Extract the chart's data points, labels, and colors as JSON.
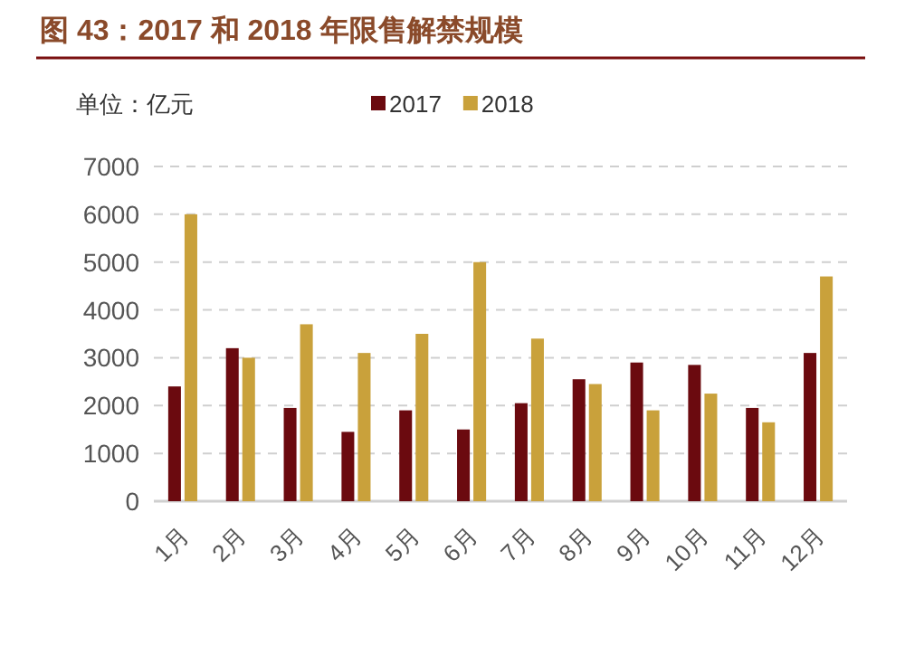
{
  "chart_data": {
    "type": "bar",
    "title": "图 43：2017 和 2018 年限售解禁规模",
    "ylabel": "单位：亿元",
    "categories": [
      "1月",
      "2月",
      "3月",
      "4月",
      "5月",
      "6月",
      "7月",
      "8月",
      "9月",
      "10月",
      "11月",
      "12月"
    ],
    "series": [
      {
        "name": "2017",
        "color": "#6b0a0f",
        "values": [
          2400,
          3200,
          1950,
          1450,
          1900,
          1500,
          2050,
          2550,
          2900,
          2850,
          1950,
          3100
        ]
      },
      {
        "name": "2018",
        "color": "#c9a13b",
        "values": [
          6000,
          3000,
          3700,
          3100,
          3500,
          5000,
          3400,
          2450,
          1900,
          2250,
          1650,
          4700
        ]
      }
    ],
    "ylim": [
      0,
      7000
    ],
    "yticks": [
      0,
      1000,
      2000,
      3000,
      4000,
      5000,
      6000,
      7000
    ],
    "grid": "y",
    "legend": "top"
  }
}
